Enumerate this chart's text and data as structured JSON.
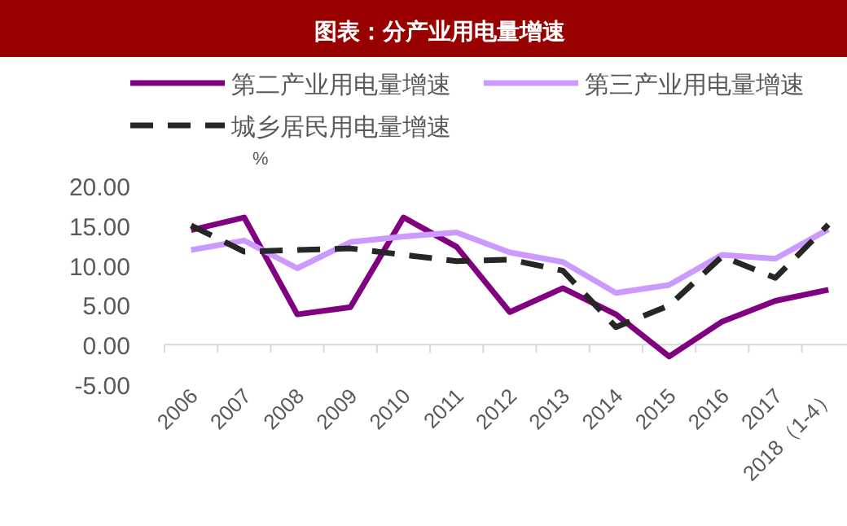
{
  "chart_data": {
    "type": "line",
    "title": "图表：分产业用电量增速",
    "ylabel": "%",
    "categories": [
      "2006",
      "2007",
      "2008",
      "2009",
      "2010",
      "2011",
      "2012",
      "2013",
      "2014",
      "2015",
      "2016",
      "2017",
      "2018（1-4）"
    ],
    "series": [
      {
        "name": "第二产业用电量增速",
        "color": "#800080",
        "line_style": "solid",
        "values": [
          14.4,
          16.0,
          3.8,
          4.7,
          16.0,
          12.3,
          4.1,
          7.1,
          3.8,
          -1.5,
          2.9,
          5.5,
          6.9
        ]
      },
      {
        "name": "第三产业用电量增速",
        "color": "#cc99ff",
        "line_style": "solid",
        "values": [
          11.9,
          13.1,
          9.6,
          12.9,
          13.6,
          14.1,
          11.6,
          10.4,
          6.5,
          7.5,
          11.3,
          10.8,
          14.5
        ]
      },
      {
        "name": "城乡居民用电量增速",
        "color": "#262626",
        "line_style": "dashed",
        "values": [
          15.0,
          11.7,
          11.9,
          12.1,
          11.3,
          10.5,
          10.7,
          9.3,
          2.2,
          4.9,
          11.1,
          8.4,
          15.1
        ]
      }
    ],
    "ylim": [
      -5,
      20
    ],
    "yticks": [
      {
        "value": -5,
        "label": "-5.00"
      },
      {
        "value": 0,
        "label": "0.00"
      },
      {
        "value": 5,
        "label": "5.00"
      },
      {
        "value": 10,
        "label": "10.00"
      },
      {
        "value": 15,
        "label": "15.00"
      },
      {
        "value": 20,
        "label": "20.00"
      }
    ],
    "grid": false,
    "legend": "top",
    "marker": "none"
  }
}
